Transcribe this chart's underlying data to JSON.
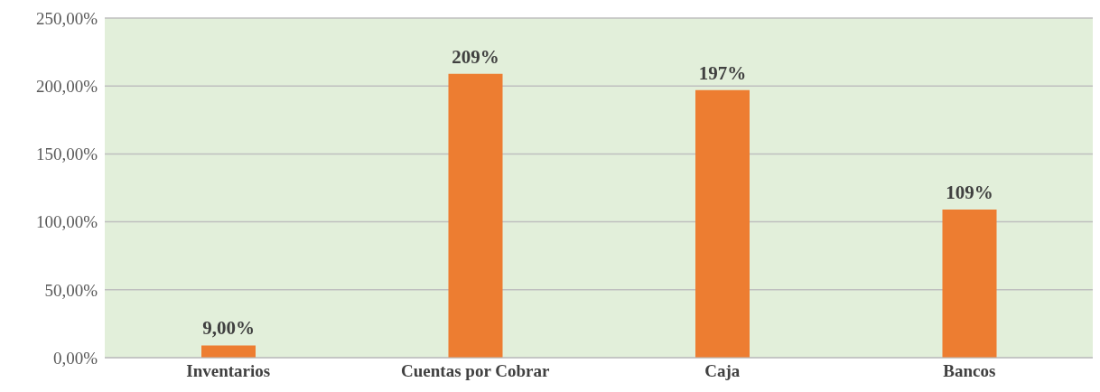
{
  "chart_data": {
    "type": "bar",
    "categories": [
      "Inventarios",
      "Cuentas por Cobrar",
      "Caja",
      "Bancos"
    ],
    "values": [
      9,
      209,
      197,
      109
    ],
    "color": "#ed7d31",
    "value_labels": [
      "9,00%",
      "209%",
      "197%",
      "109%"
    ],
    "ylim": [
      0,
      250
    ],
    "yticks": [
      {
        "value": 0,
        "label": "0,00%"
      },
      {
        "value": 50,
        "label": "50,00%"
      },
      {
        "value": 100,
        "label": "100,00%"
      },
      {
        "value": 150,
        "label": "150,00%"
      },
      {
        "value": 200,
        "label": "200,00%"
      },
      {
        "value": 250,
        "label": "250,00%"
      }
    ],
    "grid": "y",
    "legend": false
  }
}
